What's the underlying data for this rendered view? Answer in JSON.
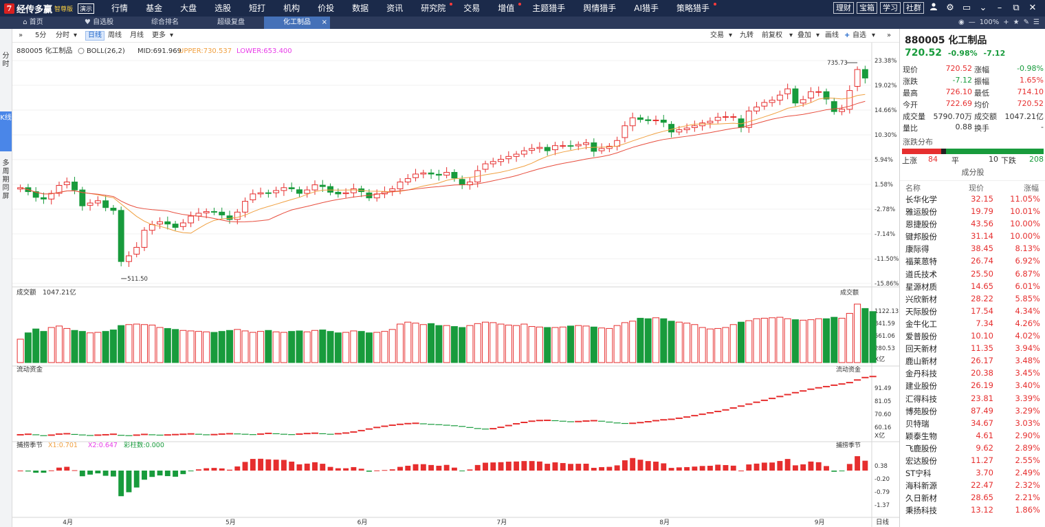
{
  "app": {
    "logo_char": "7",
    "name": "经传多赢",
    "edition": "智尊版",
    "demo": "演示"
  },
  "menu": [
    {
      "label": "行情",
      "dot": false
    },
    {
      "label": "基金",
      "dot": false
    },
    {
      "label": "大盘",
      "dot": false
    },
    {
      "label": "选股",
      "dot": false
    },
    {
      "label": "短打",
      "dot": false
    },
    {
      "label": "机构",
      "dot": false
    },
    {
      "label": "价投",
      "dot": false
    },
    {
      "label": "数据",
      "dot": false
    },
    {
      "label": "资讯",
      "dot": false
    },
    {
      "label": "研究院",
      "dot": true
    },
    {
      "label": "交易",
      "dot": false
    },
    {
      "label": "增值",
      "dot": true
    },
    {
      "label": "主题猎手",
      "dot": false
    },
    {
      "label": "舆情猎手",
      "dot": false
    },
    {
      "label": "AI猎手",
      "dot": false
    },
    {
      "label": "策略猎手",
      "dot": true
    }
  ],
  "top_buttons": [
    "理财",
    "宝箱",
    "学习",
    "社群"
  ],
  "tabs": [
    {
      "label": "首页",
      "icon": "home-icon"
    },
    {
      "label": "自选股",
      "icon": "heart-icon"
    },
    {
      "label": "综合排名",
      "icon": ""
    },
    {
      "label": "超级复盘",
      "icon": ""
    },
    {
      "label": "化工制品",
      "icon": "",
      "active": true
    }
  ],
  "zoom": "100%",
  "left_tabs": [
    "分时",
    "K线",
    "多周期同屏"
  ],
  "toolbar": {
    "periods": [
      "5分",
      "分时",
      "日线",
      "周线",
      "月线",
      "更多"
    ],
    "active_period": "日线",
    "right": [
      "交易",
      "九转",
      "前复权",
      "叠加",
      "画线",
      "自选"
    ]
  },
  "chart": {
    "code_name": "880005 化工制品",
    "indicator": "BOLL(26,2)",
    "mid": "MID:691.969",
    "upper": "UPPER:730.537",
    "lower": "LOWER:653.400",
    "high_label": "735.73",
    "low_label": "511.50",
    "pct_ticks": [
      "23.38%",
      "19.02%",
      "14.66%",
      "10.30%",
      "5.94%",
      "1.58%",
      "-2.78%",
      "-7.14%",
      "-11.50%",
      "-15.86%"
    ],
    "volume_title": "成交额",
    "volume_value": "1047.21亿",
    "volume_ticks": [
      "1122.13",
      "841.59",
      "561.06",
      "280.53"
    ],
    "volume_unit": "X亿",
    "flow_title": "流动资金",
    "flow_ticks": [
      "91.49",
      "81.05",
      "70.60",
      "60.16"
    ],
    "flow_unit": "X亿",
    "season_title": "捕捞季节",
    "x1": "X1:0.701",
    "x2": "X2:0.647",
    "bar_count": "彩柱数:0.000",
    "season_ticks": [
      "0.38",
      "-0.20",
      "-0.79",
      "-1.37"
    ],
    "months": [
      "4月",
      "5月",
      "6月",
      "7月",
      "8月",
      "9月"
    ],
    "period_label": "日线",
    "colors": {
      "up": "#e62e2e",
      "down": "#189b3c",
      "mid_line": "#e74c3c",
      "band_line": "#f0a040",
      "upper": "#f0a040",
      "lower": "#e83ce8"
    }
  },
  "chart_data": {
    "type": "candlestick",
    "title": "880005 化工制品",
    "y_axis": "percent change",
    "ylim_pct": [
      -15.86,
      23.38
    ],
    "annotations": {
      "high": 735.73,
      "low": 511.5
    },
    "closes_pct": [
      1.0,
      0.3,
      -0.7,
      -1.0,
      0.0,
      1.4,
      2.0,
      0.6,
      -2.2,
      -1.7,
      -1.3,
      -2.5,
      -3.0,
      -12.0,
      -11.0,
      -9.5,
      -6.5,
      -5.5,
      -5.0,
      -5.4,
      -6.0,
      -5.2,
      -4.0,
      -3.5,
      -3.2,
      -3.3,
      -3.8,
      -4.6,
      -3.3,
      -1.4,
      -0.1,
      0.1,
      0.0,
      0.5,
      1.0,
      0.8,
      0.0,
      0.6,
      1.5,
      1.2,
      0.2,
      -0.1,
      0.1,
      0.8,
      0.3,
      -0.8,
      -0.1,
      0.3,
      0.8,
      2.0,
      2.6,
      3.4,
      3.6,
      3.4,
      3.2,
      3.7,
      2.7,
      1.5,
      2.0,
      4.0,
      5.2,
      5.6,
      6.0,
      6.5,
      6.9,
      7.5,
      7.9,
      8.1,
      7.5,
      8.4,
      8.4,
      8.3,
      8.6,
      8.9,
      7.4,
      7.9,
      8.3,
      9.3,
      11.9,
      13.3,
      13.0,
      12.8,
      12.9,
      12.5,
      10.8,
      11.2,
      11.5,
      11.9,
      12.4,
      12.7,
      13.4,
      13.5,
      13.5,
      11.6,
      14.5,
      15.2,
      16.0,
      16.4,
      17.3,
      18.4,
      15.9,
      16.5,
      17.9,
      17.9,
      16.6,
      14.4,
      14.8,
      18.1,
      21.8,
      20.3
    ],
    "volume_yi": [
      480,
      610,
      690,
      640,
      720,
      750,
      700,
      660,
      640,
      610,
      620,
      640,
      670,
      760,
      780,
      790,
      780,
      770,
      720,
      700,
      680,
      660,
      650,
      640,
      630,
      620,
      640,
      660,
      680,
      650,
      620,
      640,
      660,
      630,
      620,
      640,
      650,
      630,
      660,
      670,
      640,
      610,
      620,
      650,
      640,
      610,
      620,
      640,
      680,
      790,
      830,
      810,
      780,
      800,
      760,
      760,
      740,
      720,
      760,
      800,
      830,
      820,
      790,
      770,
      760,
      790,
      740,
      730,
      720,
      720,
      730,
      750,
      760,
      750,
      730,
      710,
      700,
      760,
      820,
      850,
      910,
      900,
      920,
      900,
      850,
      830,
      810,
      780,
      720,
      690,
      700,
      720,
      780,
      830,
      860,
      900,
      910,
      920,
      930,
      900,
      880,
      870,
      880,
      900,
      900,
      930,
      910,
      1010,
      1200,
      1110,
      1047
    ],
    "flow_yi": [
      62.0,
      62.3,
      62.0,
      61.5,
      61.8,
      62.4,
      62.6,
      62.2,
      61.9,
      61.6,
      61.8,
      62.0,
      62.3,
      61.7,
      61.5,
      61.8,
      62.2,
      62.0,
      61.8,
      61.9,
      62.1,
      62.3,
      62.5,
      62.3,
      62.0,
      62.1,
      62.4,
      62.6,
      62.5,
      62.3,
      62.1,
      62.4,
      62.8,
      62.6,
      62.3,
      62.1,
      62.4,
      62.7,
      62.9,
      62.6,
      62.3,
      62.6,
      63.0,
      63.6,
      64.4,
      65.3,
      66.2,
      66.9,
      67.5,
      68.0,
      68.4,
      68.6,
      68.3,
      68.0,
      67.8,
      67.5,
      67.2,
      66.8,
      66.2,
      65.6,
      65.3,
      65.5,
      66.3,
      67.3,
      68.3,
      69.1,
      69.8,
      70.2,
      70.3,
      70.1,
      69.8,
      69.5,
      69.6,
      69.9,
      70.1,
      69.8,
      69.3,
      68.8,
      68.5,
      68.6,
      69.0,
      69.5,
      70.1,
      70.6,
      70.9,
      71.5,
      72.2,
      73.0,
      73.8,
      74.6,
      75.4,
      76.3,
      77.4,
      78.5,
      79.6,
      80.7,
      81.8,
      82.9,
      84.0,
      85.1,
      86.2,
      87.2,
      88.2,
      89.0,
      89.7,
      90.5,
      91.2,
      92.0,
      93.5,
      94.9,
      95.5
    ]
  },
  "side": {
    "title": "880005 化工制品",
    "price": "720.52",
    "change_pct": "-0.98%",
    "change": "-7.12",
    "stats": [
      [
        "现价",
        "720.52",
        "涨幅",
        "-0.98%"
      ],
      [
        "涨跌",
        "-7.12",
        "振幅",
        "1.65%"
      ],
      [
        "最高",
        "726.10",
        "最低",
        "714.10"
      ],
      [
        "今开",
        "722.69",
        "均价",
        "720.52"
      ],
      [
        "成交量",
        "5790.70万",
        "成交额",
        "1047.21亿"
      ],
      [
        "量比",
        "0.88",
        "换手",
        "-"
      ]
    ],
    "dist_title": "涨跌分布",
    "up_label": "上涨",
    "up": "84",
    "flat_label": "平",
    "flat": "10",
    "down_label": "下跌",
    "down": "208",
    "cons_title": "成分股",
    "cols": [
      "名称",
      "现价",
      "涨幅"
    ],
    "constituents": [
      [
        "长华化学",
        "32.15",
        "11.05%"
      ],
      [
        "雅运股份",
        "19.79",
        "10.01%"
      ],
      [
        "恩捷股份",
        "43.56",
        "10.00%"
      ],
      [
        "键邦股份",
        "31.14",
        "10.00%"
      ],
      [
        "康际得",
        "38.45",
        "8.13%"
      ],
      [
        "福莱蒽特",
        "26.74",
        "6.92%"
      ],
      [
        "道氏技术",
        "25.50",
        "6.87%"
      ],
      [
        "星源材质",
        "14.65",
        "6.01%"
      ],
      [
        "兴欣新材",
        "28.22",
        "5.85%"
      ],
      [
        "天际股份",
        "17.54",
        "4.34%"
      ],
      [
        "金牛化工",
        "7.34",
        "4.26%"
      ],
      [
        "爱普股份",
        "10.10",
        "4.02%"
      ],
      [
        "回天新材",
        "11.35",
        "3.94%"
      ],
      [
        "鹿山新材",
        "26.17",
        "3.48%"
      ],
      [
        "金丹科技",
        "20.38",
        "3.45%"
      ],
      [
        "建业股份",
        "26.19",
        "3.40%"
      ],
      [
        "汇得科技",
        "23.81",
        "3.39%"
      ],
      [
        "博苑股份",
        "87.49",
        "3.29%"
      ],
      [
        "贝特瑞",
        "34.67",
        "3.03%"
      ],
      [
        "颖泰生物",
        "4.61",
        "2.90%"
      ],
      [
        "飞鹿股份",
        "9.62",
        "2.89%"
      ],
      [
        "宏达股份",
        "11.27",
        "2.55%"
      ],
      [
        "ST宁科",
        "3.70",
        "2.49%"
      ],
      [
        "海科新源",
        "22.47",
        "2.32%"
      ],
      [
        "久日新材",
        "28.65",
        "2.21%"
      ],
      [
        "秉扬科技",
        "13.12",
        "1.86%"
      ]
    ]
  }
}
